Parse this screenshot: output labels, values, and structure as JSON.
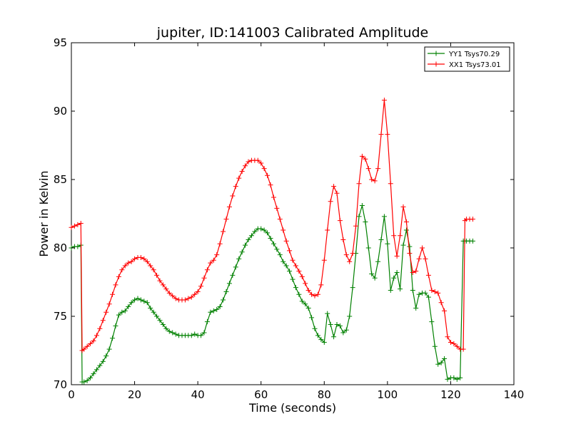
{
  "chart_data": {
    "type": "line",
    "title": "jupiter, ID:141003 Calibrated Amplitude",
    "xlabel": "Time (seconds)",
    "ylabel": "Power in Kelvin",
    "xlim": [
      0,
      140
    ],
    "ylim": [
      70,
      95
    ],
    "xticks": [
      "0",
      "20",
      "40",
      "60",
      "80",
      "100",
      "120",
      "140"
    ],
    "yticks": [
      "70",
      "75",
      "80",
      "85",
      "90",
      "95"
    ],
    "grid": false,
    "legend_position": "top-right",
    "series": [
      {
        "name": "YY1 Tsys70.29",
        "color": "#008000",
        "marker": "plus",
        "x": [
          0,
          1,
          2,
          3,
          3.4,
          4,
          5,
          6,
          7,
          8,
          9,
          10,
          11,
          12,
          13,
          14,
          15,
          16,
          17,
          18,
          19,
          20,
          21,
          22,
          23,
          24,
          25,
          26,
          27,
          28,
          29,
          30,
          31,
          32,
          33,
          34,
          35,
          36,
          37,
          38,
          39,
          40,
          41,
          42,
          43,
          44,
          45,
          46,
          47,
          48,
          49,
          50,
          51,
          52,
          53,
          54,
          55,
          56,
          57,
          58,
          59,
          60,
          61,
          62,
          63,
          64,
          65,
          66,
          67,
          68,
          69,
          70,
          71,
          72,
          73,
          74,
          75,
          76,
          77,
          78,
          79,
          80,
          81,
          82,
          83,
          84,
          85,
          86,
          87,
          88,
          89,
          90,
          91,
          92,
          93,
          94,
          95,
          96,
          97,
          98,
          99,
          100,
          101,
          102,
          103,
          104,
          105,
          106,
          107,
          108,
          109,
          110,
          111,
          112,
          113,
          114,
          115,
          116,
          117,
          118,
          119,
          120,
          121,
          122,
          123,
          124,
          124.5,
          125,
          126,
          127
        ],
        "y": [
          80.0,
          80.1,
          80.1,
          80.2,
          70.2,
          70.2,
          70.3,
          70.5,
          70.8,
          71.1,
          71.4,
          71.7,
          72.1,
          72.6,
          73.4,
          74.3,
          75.1,
          75.3,
          75.4,
          75.7,
          76.0,
          76.2,
          76.3,
          76.2,
          76.1,
          76.0,
          75.6,
          75.3,
          75.0,
          74.7,
          74.4,
          74.1,
          73.9,
          73.8,
          73.7,
          73.6,
          73.6,
          73.6,
          73.6,
          73.6,
          73.7,
          73.6,
          73.6,
          73.8,
          74.6,
          75.3,
          75.4,
          75.5,
          75.7,
          76.2,
          76.8,
          77.4,
          78.0,
          78.6,
          79.2,
          79.7,
          80.2,
          80.6,
          80.9,
          81.2,
          81.4,
          81.4,
          81.3,
          81.1,
          80.7,
          80.3,
          79.9,
          79.5,
          79.0,
          78.7,
          78.3,
          77.7,
          77.1,
          76.6,
          76.1,
          75.9,
          75.6,
          74.9,
          74.1,
          73.6,
          73.3,
          73.1,
          75.2,
          74.4,
          73.5,
          74.4,
          74.3,
          73.8,
          74.0,
          75.0,
          77.1,
          79.6,
          82.3,
          83.1,
          81.9,
          80.0,
          78.1,
          77.8,
          79.0,
          80.6,
          82.3,
          80.3,
          76.9,
          77.8,
          78.2,
          77.0,
          80.2,
          81.3,
          80.1,
          76.9,
          75.6,
          76.6,
          76.7,
          76.7,
          76.4,
          74.6,
          72.8,
          71.5,
          71.6,
          71.9,
          70.4,
          70.5,
          70.5,
          70.4,
          70.5,
          80.5,
          80.5,
          80.5,
          80.5,
          80.5
        ]
      },
      {
        "name": "XX1 Tsys73.01",
        "color": "#ff0000",
        "marker": "plus",
        "x": [
          0,
          1,
          2,
          3,
          3.4,
          4,
          5,
          6,
          7,
          8,
          9,
          10,
          11,
          12,
          13,
          14,
          15,
          16,
          17,
          18,
          19,
          20,
          21,
          22,
          23,
          24,
          25,
          26,
          27,
          28,
          29,
          30,
          31,
          32,
          33,
          34,
          35,
          36,
          37,
          38,
          39,
          40,
          41,
          42,
          43,
          44,
          45,
          46,
          47,
          48,
          49,
          50,
          51,
          52,
          53,
          54,
          55,
          56,
          57,
          58,
          59,
          60,
          61,
          62,
          63,
          64,
          65,
          66,
          67,
          68,
          69,
          70,
          71,
          72,
          73,
          74,
          75,
          76,
          77,
          78,
          79,
          80,
          81,
          82,
          83,
          84,
          85,
          86,
          87,
          88,
          89,
          90,
          91,
          92,
          93,
          94,
          95,
          96,
          97,
          98,
          99,
          100,
          101,
          102,
          103,
          104,
          105,
          106,
          107,
          108,
          109,
          110,
          111,
          112,
          113,
          114,
          115,
          116,
          117,
          118,
          119,
          120,
          121,
          122,
          123,
          124,
          124.5,
          125,
          126,
          127
        ],
        "y": [
          81.5,
          81.6,
          81.7,
          81.8,
          72.5,
          72.6,
          72.8,
          73.0,
          73.2,
          73.6,
          74.1,
          74.7,
          75.3,
          75.9,
          76.6,
          77.3,
          77.9,
          78.4,
          78.7,
          78.9,
          79.0,
          79.2,
          79.3,
          79.3,
          79.2,
          79.0,
          78.7,
          78.4,
          78.0,
          77.6,
          77.3,
          77.0,
          76.7,
          76.5,
          76.3,
          76.2,
          76.2,
          76.2,
          76.3,
          76.4,
          76.6,
          76.8,
          77.2,
          77.8,
          78.4,
          78.9,
          79.1,
          79.5,
          80.3,
          81.2,
          82.1,
          83.0,
          83.8,
          84.5,
          85.1,
          85.6,
          86.0,
          86.3,
          86.4,
          86.4,
          86.4,
          86.2,
          85.8,
          85.3,
          84.6,
          83.7,
          82.9,
          82.1,
          81.3,
          80.5,
          79.8,
          79.1,
          78.7,
          78.3,
          77.9,
          77.4,
          76.9,
          76.6,
          76.5,
          76.6,
          77.3,
          79.1,
          81.3,
          83.4,
          84.5,
          84.0,
          82.0,
          80.6,
          79.5,
          79.0,
          79.6,
          81.6,
          84.7,
          86.7,
          86.5,
          85.8,
          85.0,
          84.9,
          85.8,
          88.3,
          90.8,
          88.3,
          84.7,
          80.9,
          79.4,
          80.9,
          83.0,
          81.9,
          79.6,
          78.2,
          78.3,
          79.2,
          80.0,
          79.2,
          78.0,
          76.9,
          76.8,
          76.7,
          76.0,
          75.4,
          73.5,
          73.1,
          73.0,
          72.8,
          72.6,
          72.6,
          82.0,
          82.1,
          82.1,
          82.1
        ]
      }
    ]
  }
}
